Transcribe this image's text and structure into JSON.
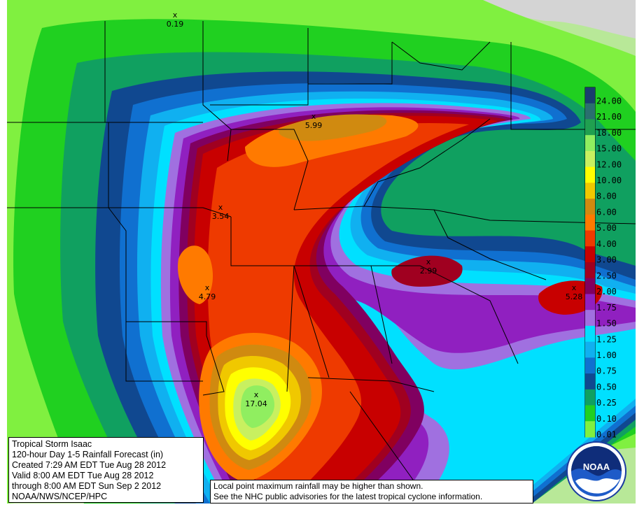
{
  "map": {
    "title_lines": [
      "Tropical Storm Isaac",
      "120-hour Day 1-5 Rainfall Forecast (in)",
      "Created 7:29 AM EDT Tue Aug 28 2012",
      "Valid 8:00 AM EDT Tue Aug 28 2012",
      "through 8:00 AM EDT Sun Sep 2 2012",
      "NOAA/NWS/NCEP/HPC"
    ],
    "note_lines": [
      "Local point maximum rainfall may be higher than shown.",
      "See the NHC public advisories for the latest tropical cyclone information."
    ],
    "units": "in",
    "logo_text": "NOAA"
  },
  "legend": {
    "levels": [
      {
        "label": "24.00",
        "color": "#1a3c6e"
      },
      {
        "label": "21.00",
        "color": "#2a6f6f"
      },
      {
        "label": "18.00",
        "color": "#20a050"
      },
      {
        "label": "15.00",
        "color": "#90ee60"
      },
      {
        "label": "12.00",
        "color": "#c8f060"
      },
      {
        "label": "10.00",
        "color": "#ffff00"
      },
      {
        "label": "8.00",
        "color": "#f0c800"
      },
      {
        "label": "6.00",
        "color": "#d08a10"
      },
      {
        "label": "5.00",
        "color": "#ff7a00"
      },
      {
        "label": "4.00",
        "color": "#ee3a00"
      },
      {
        "label": "3.00",
        "color": "#c80000"
      },
      {
        "label": "2.50",
        "color": "#a00020"
      },
      {
        "label": "2.00",
        "color": "#800060"
      },
      {
        "label": "1.75",
        "color": "#9020c0"
      },
      {
        "label": "1.50",
        "color": "#a070e0"
      },
      {
        "label": "1.25",
        "color": "#00e0ff"
      },
      {
        "label": "1.00",
        "color": "#10b0f0"
      },
      {
        "label": "0.75",
        "color": "#1070d0"
      },
      {
        "label": "0.50",
        "color": "#104890"
      },
      {
        "label": "0.25",
        "color": "#10a060"
      },
      {
        "label": "0.10",
        "color": "#20d020"
      },
      {
        "label": "0.01",
        "color": "#80f040"
      }
    ]
  },
  "maxima": [
    {
      "value": "0.19"
    },
    {
      "value": "5.99"
    },
    {
      "value": "3.54"
    },
    {
      "value": "4.79"
    },
    {
      "value": "17.04"
    },
    {
      "value": "2.99"
    },
    {
      "value": "5.28"
    }
  ]
}
